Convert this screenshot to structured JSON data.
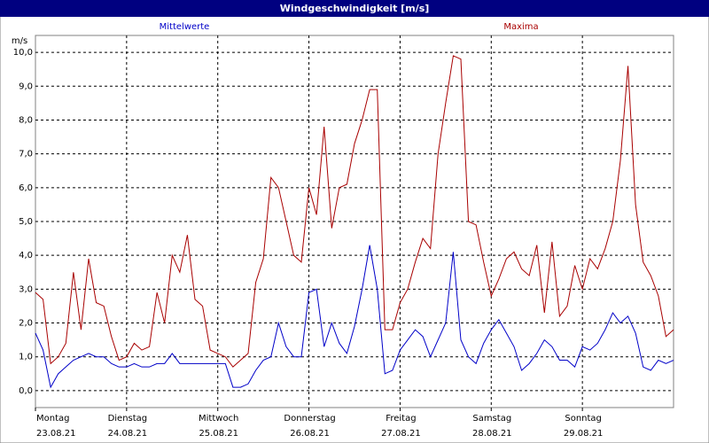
{
  "chart_data": {
    "type": "line",
    "title": "Windgeschwindigkeit [m/s]",
    "ylabel": "m/s",
    "xlim": [
      0,
      168
    ],
    "ylim": [
      -0.5,
      10.5
    ],
    "yticks": [
      {
        "value": 0,
        "label": "0,0"
      },
      {
        "value": 1,
        "label": "1,0"
      },
      {
        "value": 2,
        "label": "2,0"
      },
      {
        "value": 3,
        "label": "3,0"
      },
      {
        "value": 4,
        "label": "4,0"
      },
      {
        "value": 5,
        "label": "5,0"
      },
      {
        "value": 6,
        "label": "6,0"
      },
      {
        "value": 7,
        "label": "7,0"
      },
      {
        "value": 8,
        "label": "8,0"
      },
      {
        "value": 9,
        "label": "9,0"
      },
      {
        "value": 10,
        "label": "10,0"
      }
    ],
    "xticks": [
      {
        "value": 0,
        "label": "Montag",
        "sublabel": "23.08.21"
      },
      {
        "value": 24,
        "label": "Dienstag",
        "sublabel": "24.08.21"
      },
      {
        "value": 48,
        "label": "Mittwoch",
        "sublabel": "25.08.21"
      },
      {
        "value": 72,
        "label": "Donnerstag",
        "sublabel": "26.08.21"
      },
      {
        "value": 96,
        "label": "Freitag",
        "sublabel": "27.08.21"
      },
      {
        "value": 120,
        "label": "Samstag",
        "sublabel": "28.08.21"
      },
      {
        "value": 144,
        "label": "Sonntag",
        "sublabel": "29.08.21"
      }
    ],
    "grid": true,
    "x": [
      0,
      2,
      4,
      6,
      8,
      10,
      12,
      14,
      16,
      18,
      20,
      22,
      24,
      26,
      28,
      30,
      32,
      34,
      36,
      38,
      40,
      42,
      44,
      46,
      48,
      50,
      52,
      54,
      56,
      58,
      60,
      62,
      64,
      66,
      68,
      70,
      72,
      74,
      76,
      78,
      80,
      82,
      84,
      86,
      88,
      90,
      92,
      94,
      96,
      98,
      100,
      102,
      104,
      106,
      108,
      110,
      112,
      114,
      116,
      118,
      120,
      122,
      124,
      126,
      128,
      130,
      132,
      134,
      136,
      138,
      140,
      142,
      144,
      146,
      148,
      150,
      152,
      154,
      156,
      158,
      160,
      162,
      164,
      166,
      168
    ],
    "series": [
      {
        "name": "Mittelwerte",
        "color": "#0000c8",
        "values": [
          1.7,
          1.2,
          0.1,
          0.5,
          0.7,
          0.9,
          1.0,
          1.1,
          1.0,
          1.0,
          0.8,
          0.7,
          0.7,
          0.8,
          0.7,
          0.7,
          0.8,
          0.8,
          1.1,
          0.8,
          0.8,
          0.8,
          0.8,
          0.8,
          0.8,
          0.8,
          0.1,
          0.1,
          0.2,
          0.6,
          0.9,
          1.0,
          2.0,
          1.3,
          1.0,
          1.0,
          2.9,
          3.0,
          1.3,
          2.0,
          1.4,
          1.1,
          1.9,
          3.0,
          4.3,
          3.0,
          0.5,
          0.6,
          1.2,
          1.5,
          1.8,
          1.6,
          1.0,
          1.5,
          2.0,
          4.1,
          1.5,
          1.0,
          0.8,
          1.4,
          1.8,
          2.1,
          1.7,
          1.3,
          0.6,
          0.8,
          1.1,
          1.5,
          1.3,
          0.9,
          0.9,
          0.7,
          1.3,
          1.2,
          1.4,
          1.8,
          2.3,
          2.0,
          2.2,
          1.7,
          0.7,
          0.6,
          0.9,
          0.8,
          0.9
        ]
      },
      {
        "name": "Maxima",
        "color": "#a80000",
        "values": [
          2.9,
          2.7,
          0.8,
          1.0,
          1.4,
          3.5,
          1.8,
          3.9,
          2.6,
          2.5,
          1.6,
          0.9,
          1.0,
          1.4,
          1.2,
          1.3,
          2.9,
          2.0,
          4.0,
          3.5,
          4.6,
          2.7,
          2.5,
          1.2,
          1.1,
          1.0,
          0.7,
          0.9,
          1.1,
          3.2,
          3.9,
          6.3,
          6.0,
          5.0,
          4.0,
          3.8,
          6.0,
          5.2,
          7.8,
          4.8,
          6.0,
          6.1,
          7.3,
          8.0,
          8.9,
          8.9,
          1.8,
          1.8,
          2.6,
          3.0,
          3.8,
          4.5,
          4.2,
          7.0,
          8.5,
          9.9,
          9.8,
          5.0,
          4.9,
          3.8,
          2.8,
          3.3,
          3.9,
          4.1,
          3.6,
          3.4,
          4.3,
          2.3,
          4.4,
          2.2,
          2.5,
          3.7,
          3.0,
          3.9,
          3.6,
          4.2,
          5.0,
          6.8,
          9.6,
          5.5,
          3.8,
          3.4,
          2.8,
          1.6,
          1.8
        ]
      }
    ]
  }
}
